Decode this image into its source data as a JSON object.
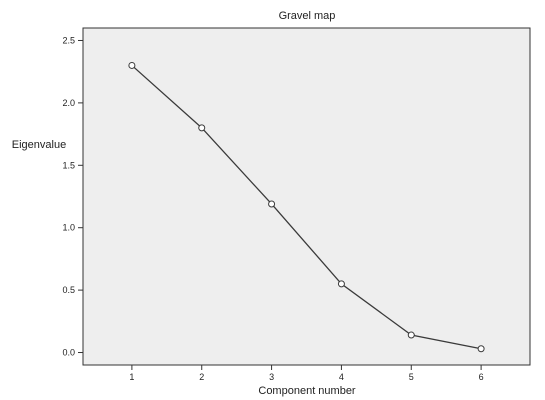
{
  "chart_data": {
    "type": "line",
    "title": "Gravel map",
    "xlabel": "Component number",
    "ylabel": "Eigenvalue",
    "x": [
      1,
      2,
      3,
      4,
      5,
      6
    ],
    "y": [
      2.3,
      1.8,
      1.19,
      0.55,
      0.14,
      0.03
    ],
    "xlim": [
      0.3,
      6.7
    ],
    "ylim": [
      -0.1,
      2.6
    ],
    "xticks": [
      "1",
      "2",
      "3",
      "4",
      "5",
      "6"
    ],
    "yticks": [
      "0.0",
      "0.5",
      "1.0",
      "1.5",
      "2.0",
      "2.5"
    ],
    "grid": false,
    "legend": "none",
    "colors": {
      "plot_background": "#eeeeee",
      "line": "#3a3a3a",
      "marker": "#3a3a3a",
      "axis": "#333333"
    }
  }
}
